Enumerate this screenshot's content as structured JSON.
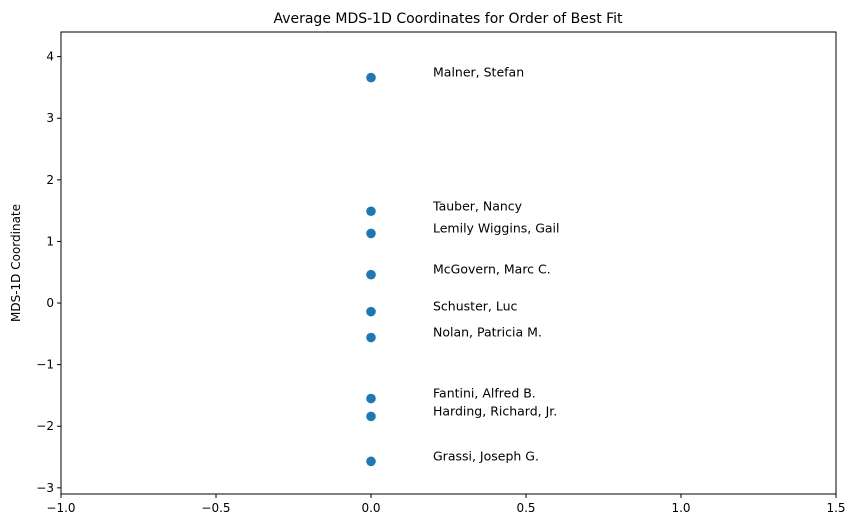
{
  "chart_data": {
    "type": "scatter",
    "title": "Average MDS-1D Coordinates for Order of Best Fit",
    "xlabel": "",
    "ylabel": "MDS-1D Coordinate",
    "xlim": [
      -1.0,
      1.5
    ],
    "ylim": [
      -3.1,
      4.4
    ],
    "xticks": [
      -1.0,
      -0.5,
      0.0,
      0.5,
      1.0,
      1.5
    ],
    "xtick_labels": [
      "−1.0",
      "−0.5",
      "0.0",
      "0.5",
      "1.0",
      "1.5"
    ],
    "yticks": [
      -3,
      -2,
      -1,
      0,
      1,
      2,
      3,
      4
    ],
    "ytick_labels": [
      "−3",
      "−2",
      "−1",
      "0",
      "1",
      "2",
      "3",
      "4"
    ],
    "grid": false,
    "point_color": "#1f77b4",
    "points": [
      {
        "label": "Malner, Stefan",
        "x": 0.0,
        "y": 3.66
      },
      {
        "label": "Tauber, Nancy",
        "x": 0.0,
        "y": 1.49
      },
      {
        "label": "Lemily Wiggins, Gail",
        "x": 0.0,
        "y": 1.13
      },
      {
        "label": "McGovern, Marc C.",
        "x": 0.0,
        "y": 0.46
      },
      {
        "label": "Schuster, Luc",
        "x": 0.0,
        "y": -0.14
      },
      {
        "label": "Nolan, Patricia M.",
        "x": 0.0,
        "y": -0.56
      },
      {
        "label": "Fantini, Alfred B.",
        "x": 0.0,
        "y": -1.55
      },
      {
        "label": "Harding, Richard, Jr.",
        "x": 0.0,
        "y": -1.84
      },
      {
        "label": "Grassi, Joseph G.",
        "x": 0.0,
        "y": -2.57
      }
    ]
  }
}
